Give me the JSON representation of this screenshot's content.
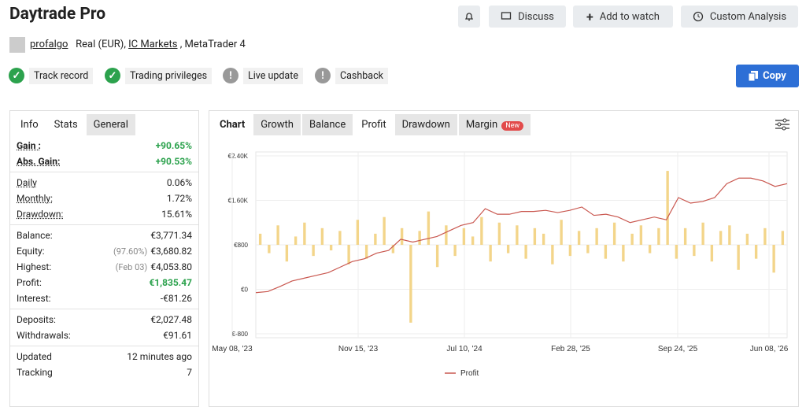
{
  "header": {
    "title": "Daytrade Pro",
    "user": "profalgo",
    "account_type": "Real (EUR),",
    "broker": "IC Markets",
    "platform": ", MetaTrader 4",
    "buttons": [
      "Discuss",
      "Add to watch",
      "Custom Analysis"
    ],
    "badges": [
      "Track record",
      "Trading privileges",
      "Live update",
      "Cashback"
    ],
    "copy": "Copy"
  },
  "stats": {
    "tabs": [
      "Info",
      "Stats",
      "General"
    ],
    "groups": [
      [
        {
          "label": "Gain :",
          "value": "+90.65%"
        },
        {
          "label": "Abs. Gain:",
          "value": "+90.53%"
        }
      ],
      [
        {
          "label": "Daily",
          "value": "0.06%"
        },
        {
          "label": "Monthly:",
          "value": "1.72%"
        },
        {
          "label": "Drawdown:",
          "value": "15.61%"
        }
      ],
      [
        {
          "label": "Balance:",
          "value": "€3,771.34"
        },
        {
          "label": "Equity:",
          "note": "(97.60%)",
          "value": "€3,680.82"
        },
        {
          "label": "Highest:",
          "note": "(Feb 03)",
          "value": "€4,053.80"
        },
        {
          "label": "Profit:",
          "value": "€1,835.47"
        },
        {
          "label": "Interest:",
          "value": "-€81.26"
        }
      ],
      [
        {
          "label": "Deposits:",
          "value": "€2,027.48"
        },
        {
          "label": "Withdrawals:",
          "value": "€91.61"
        }
      ],
      [
        {
          "label": "Updated",
          "value": "12 minutes ago"
        },
        {
          "label": "Tracking",
          "value": "7"
        }
      ]
    ]
  },
  "chart_tabs": [
    "Chart",
    "Growth",
    "Balance",
    "Profit",
    "Drawdown",
    "Margin"
  ],
  "new_badge": "New",
  "chart_data": {
    "type": "line",
    "xticks": [
      "May 08, '23",
      "Nov 15, '23",
      "Jul 10, '24",
      "Feb 28, '25",
      "Sep 24, '25",
      "Jun 08, '26"
    ],
    "ylim": [
      -800,
      2400
    ],
    "yticks": [
      {
        "value": -800,
        "label": "€-800"
      },
      {
        "value": 0,
        "label": "€0"
      },
      {
        "value": 800,
        "label": "€800"
      },
      {
        "value": 1600,
        "label": "€1.60K"
      },
      {
        "value": 2400,
        "label": "€2.40K"
      }
    ],
    "y2lim": [
      -1600,
      1600
    ],
    "series": [
      {
        "name": "Profit",
        "type": "line",
        "color": "#c9574f",
        "values": [
          -60,
          -40,
          50,
          150,
          200,
          250,
          300,
          400,
          500,
          550,
          650,
          700,
          900,
          850,
          900,
          950,
          1050,
          1150,
          1200,
          1450,
          1350,
          1350,
          1400,
          1400,
          1420,
          1380,
          1420,
          1480,
          1330,
          1350,
          1300,
          1200,
          1250,
          1300,
          1250,
          1650,
          1550,
          1580,
          1650,
          1900,
          2000,
          2000,
          1950,
          1850,
          1900
        ]
      },
      {
        "type": "bar",
        "axis": "y2",
        "color": "#f3d58a",
        "values": [
          200,
          -150,
          350,
          -300,
          150,
          400,
          -200,
          300,
          -100,
          250,
          -350,
          450,
          -250,
          200,
          500,
          -150,
          300,
          -1400,
          250,
          600,
          -400,
          350,
          -200,
          300,
          150,
          500,
          -300,
          400,
          -150,
          350,
          -250,
          300,
          200,
          -350,
          450,
          -200,
          250,
          -150,
          300,
          -250,
          400,
          -300,
          200,
          350,
          -150,
          300,
          1330,
          -250,
          300,
          -200,
          400,
          -300,
          250,
          350,
          -450,
          200,
          -250,
          300,
          -500,
          250
        ]
      }
    ]
  }
}
